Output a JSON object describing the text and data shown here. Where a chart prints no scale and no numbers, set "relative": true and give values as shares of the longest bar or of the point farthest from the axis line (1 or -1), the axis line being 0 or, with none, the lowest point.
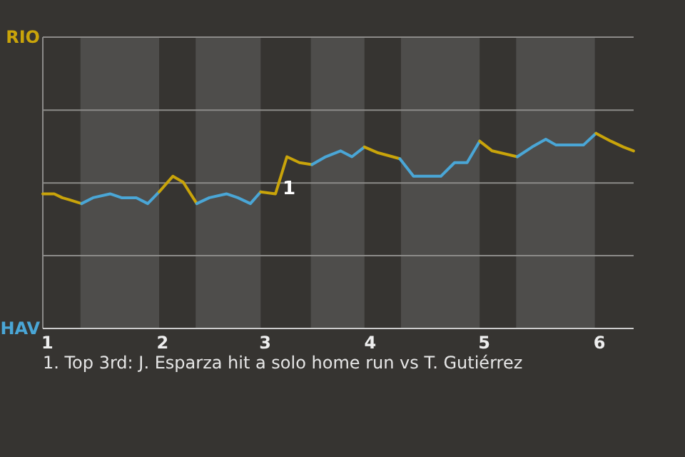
{
  "chart_data": {
    "type": "line",
    "relative": true,
    "xlim": [
      0.96,
      6.14
    ],
    "xticks": [
      {
        "value": 1.0,
        "label": "1"
      },
      {
        "value": 2.01,
        "label": "2"
      },
      {
        "value": 2.91,
        "label": "3"
      },
      {
        "value": 3.83,
        "label": "4"
      },
      {
        "value": 4.83,
        "label": "5"
      },
      {
        "value": 5.84,
        "label": "6"
      }
    ],
    "marker": "none",
    "line_style": "solid",
    "ref_lines": [
      {
        "axis": "y",
        "value": 0.373,
        "color": "#8c8b89"
      },
      {
        "axis": "y",
        "value": 0.746,
        "color": "#8c8b89"
      },
      {
        "axis": "y",
        "value": 1.119,
        "color": "#8c8b89"
      },
      {
        "axis": "y",
        "value": 1.493,
        "color": "#8c8b89"
      }
    ],
    "bands": [
      {
        "axis": "x",
        "from": 1.29,
        "to": 1.98,
        "color": "#4e4d4b"
      },
      {
        "axis": "x",
        "from": 2.3,
        "to": 2.87,
        "color": "#4e4d4b"
      },
      {
        "axis": "x",
        "from": 3.31,
        "to": 3.78,
        "color": "#4e4d4b"
      },
      {
        "axis": "x",
        "from": 4.1,
        "to": 4.79,
        "color": "#4e4d4b"
      },
      {
        "axis": "x",
        "from": 5.11,
        "to": 5.8,
        "color": "#4e4d4b"
      }
    ],
    "series": [
      {
        "color": "#c9a40a",
        "x": [
          0.96,
          1.06,
          1.13,
          1.19,
          1.3
        ],
        "values": [
          0.69,
          0.69,
          0.67,
          0.66,
          0.64
        ]
      },
      {
        "color": "#4aa6d6",
        "x": [
          1.3,
          1.4,
          1.55,
          1.65,
          1.78,
          1.88,
          1.98
        ],
        "values": [
          0.64,
          0.67,
          0.69,
          0.67,
          0.67,
          0.64,
          0.7
        ]
      },
      {
        "color": "#c9a40a",
        "x": [
          1.98,
          2.1,
          2.19,
          2.31
        ],
        "values": [
          0.7,
          0.78,
          0.75,
          0.64
        ]
      },
      {
        "color": "#4aa6d6",
        "x": [
          2.31,
          2.42,
          2.57,
          2.67,
          2.78,
          2.87
        ],
        "values": [
          0.64,
          0.67,
          0.69,
          0.67,
          0.64,
          0.7
        ]
      },
      {
        "color": "#c9a40a",
        "x": [
          2.87,
          3.0,
          3.1,
          3.21,
          3.32
        ],
        "values": [
          0.7,
          0.69,
          0.88,
          0.85,
          0.84
        ]
      },
      {
        "color": "#4aa6d6",
        "x": [
          3.32,
          3.44,
          3.57,
          3.67,
          3.78
        ],
        "values": [
          0.84,
          0.88,
          0.91,
          0.88,
          0.93
        ]
      },
      {
        "color": "#c9a40a",
        "x": [
          3.78,
          3.9,
          4.09
        ],
        "values": [
          0.93,
          0.9,
          0.87
        ]
      },
      {
        "color": "#4aa6d6",
        "x": [
          4.09,
          4.21,
          4.45,
          4.57,
          4.68,
          4.79
        ],
        "values": [
          0.87,
          0.78,
          0.78,
          0.85,
          0.85,
          0.96
        ]
      },
      {
        "color": "#c9a40a",
        "x": [
          4.79,
          4.9,
          5.12
        ],
        "values": [
          0.96,
          0.91,
          0.88
        ]
      },
      {
        "color": "#4aa6d6",
        "x": [
          5.12,
          5.25,
          5.37,
          5.46,
          5.7,
          5.81
        ],
        "values": [
          0.88,
          0.93,
          0.97,
          0.94,
          0.94,
          1
        ]
      },
      {
        "color": "#c9a40a",
        "x": [
          5.81,
          5.94,
          6.05,
          6.14
        ],
        "values": [
          1,
          0.96,
          0.93,
          0.91
        ]
      }
    ],
    "annotations": [
      "RIO",
      "HAV",
      {
        "text": "1",
        "x": 3.1,
        "y": 0.88
      },
      "1. Top 3rd: J. Esparza hit a solo home run vs T. Gutiérrez"
    ]
  }
}
